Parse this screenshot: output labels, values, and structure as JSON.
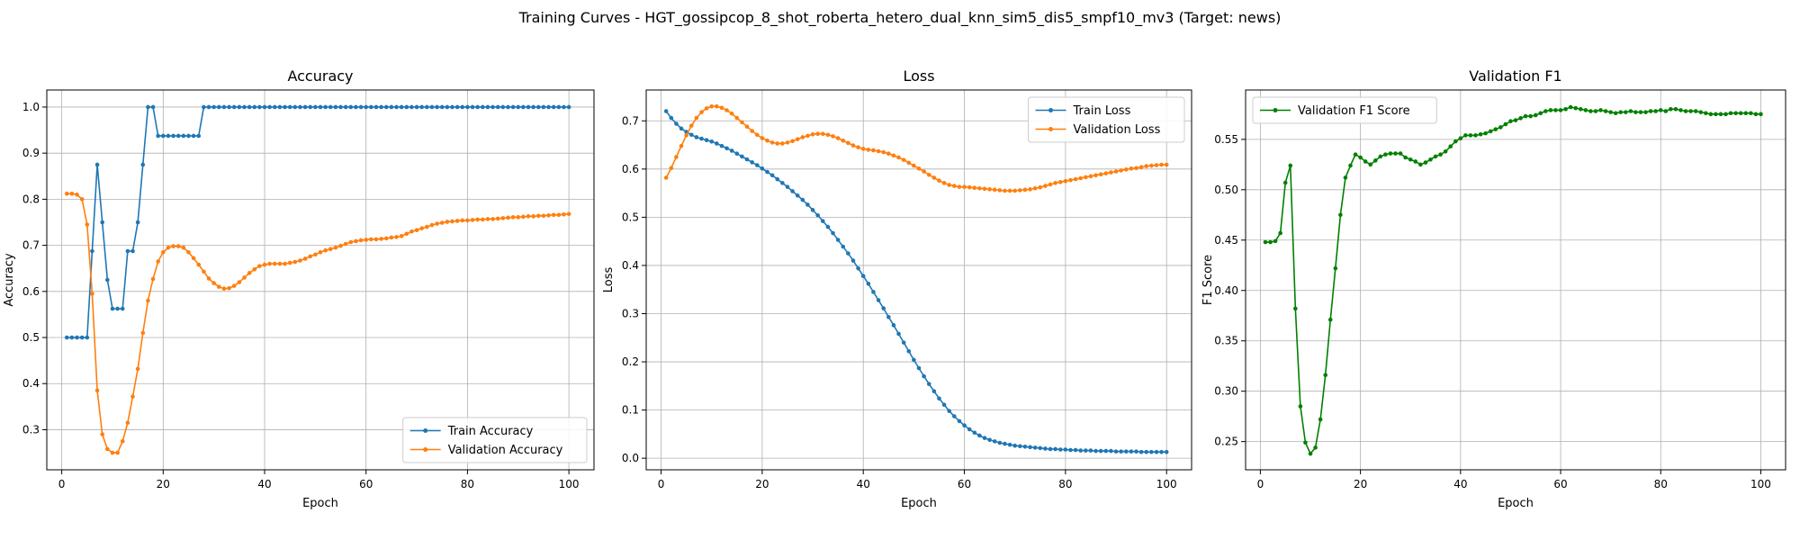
{
  "suptitle": "Training Curves - HGT_gossipcop_8_shot_roberta_hetero_dual_knn_sim5_dis5_smpf10_mv3 (Target: news)",
  "colors": {
    "blue": "#1f77b4",
    "orange": "#ff7f0e",
    "green": "#008000",
    "grid": "#b0b0b0"
  },
  "chart_data": [
    {
      "type": "line",
      "title": "Accuracy",
      "xlabel": "Epoch",
      "ylabel": "Accuracy",
      "xlim": [
        -2.95,
        104.95
      ],
      "ylim": [
        0.213,
        1.037
      ],
      "xticks": [
        0,
        20,
        40,
        60,
        80,
        100
      ],
      "yticks": [
        0.3,
        0.4,
        0.5,
        0.6,
        0.7,
        0.8,
        0.9,
        1.0
      ],
      "ytick_labels": [
        "0.3",
        "0.4",
        "0.5",
        "0.6",
        "0.7",
        "0.8",
        "0.9",
        "1.0"
      ],
      "grid": true,
      "legend_loc": "lower-right",
      "series": [
        {
          "name": "Train Accuracy",
          "color": "#1f77b4",
          "values": [
            0.5,
            0.5,
            0.5,
            0.5,
            0.5,
            0.6875,
            0.875,
            0.75,
            0.625,
            0.5625,
            0.5625,
            0.5625,
            0.6875,
            0.6875,
            0.75,
            0.875,
            1.0,
            1.0,
            0.9375,
            0.9375,
            0.9375,
            0.9375,
            0.9375,
            0.9375,
            0.9375,
            0.9375,
            0.9375,
            1.0,
            1.0,
            1.0,
            1.0,
            1.0,
            1.0,
            1.0,
            1.0,
            1.0,
            1.0,
            1.0,
            1.0,
            1.0,
            1.0,
            1.0,
            1.0,
            1.0,
            1.0,
            1.0,
            1.0,
            1.0,
            1.0,
            1.0,
            1.0,
            1.0,
            1.0,
            1.0,
            1.0,
            1.0,
            1.0,
            1.0,
            1.0,
            1.0,
            1.0,
            1.0,
            1.0,
            1.0,
            1.0,
            1.0,
            1.0,
            1.0,
            1.0,
            1.0,
            1.0,
            1.0,
            1.0,
            1.0,
            1.0,
            1.0,
            1.0,
            1.0,
            1.0,
            1.0,
            1.0,
            1.0,
            1.0,
            1.0,
            1.0,
            1.0,
            1.0,
            1.0,
            1.0,
            1.0,
            1.0,
            1.0,
            1.0,
            1.0,
            1.0,
            1.0,
            1.0,
            1.0,
            1.0,
            1.0
          ]
        },
        {
          "name": "Validation Accuracy",
          "color": "#ff7f0e",
          "values": [
            0.812,
            0.812,
            0.81,
            0.8,
            0.745,
            0.595,
            0.385,
            0.29,
            0.258,
            0.25,
            0.25,
            0.275,
            0.315,
            0.372,
            0.432,
            0.51,
            0.58,
            0.627,
            0.665,
            0.685,
            0.695,
            0.698,
            0.698,
            0.695,
            0.685,
            0.672,
            0.658,
            0.643,
            0.628,
            0.618,
            0.61,
            0.606,
            0.607,
            0.612,
            0.62,
            0.63,
            0.64,
            0.648,
            0.655,
            0.658,
            0.66,
            0.66,
            0.66,
            0.66,
            0.662,
            0.664,
            0.667,
            0.671,
            0.676,
            0.68,
            0.685,
            0.689,
            0.692,
            0.695,
            0.699,
            0.703,
            0.707,
            0.709,
            0.711,
            0.712,
            0.713,
            0.713,
            0.714,
            0.715,
            0.717,
            0.718,
            0.72,
            0.725,
            0.73,
            0.733,
            0.737,
            0.74,
            0.744,
            0.747,
            0.749,
            0.751,
            0.752,
            0.753,
            0.754,
            0.754,
            0.755,
            0.756,
            0.756,
            0.757,
            0.757,
            0.758,
            0.759,
            0.76,
            0.761,
            0.761,
            0.762,
            0.763,
            0.763,
            0.764,
            0.764,
            0.765,
            0.766,
            0.766,
            0.767,
            0.768
          ]
        }
      ]
    },
    {
      "type": "line",
      "title": "Loss",
      "xlabel": "Epoch",
      "ylabel": "Loss",
      "xlim": [
        -2.95,
        104.95
      ],
      "ylim": [
        -0.024,
        0.764
      ],
      "xticks": [
        0,
        20,
        40,
        60,
        80,
        100
      ],
      "yticks": [
        0.0,
        0.1,
        0.2,
        0.3,
        0.4,
        0.5,
        0.6,
        0.7
      ],
      "ytick_labels": [
        "0.0",
        "0.1",
        "0.2",
        "0.3",
        "0.4",
        "0.5",
        "0.6",
        "0.7"
      ],
      "grid": true,
      "legend_loc": "upper-right",
      "series": [
        {
          "name": "Train Loss",
          "color": "#1f77b4",
          "values": [
            0.72,
            0.706,
            0.694,
            0.684,
            0.677,
            0.671,
            0.666,
            0.663,
            0.66,
            0.657,
            0.653,
            0.648,
            0.643,
            0.638,
            0.632,
            0.626,
            0.62,
            0.614,
            0.608,
            0.601,
            0.594,
            0.587,
            0.579,
            0.571,
            0.563,
            0.554,
            0.545,
            0.536,
            0.526,
            0.515,
            0.504,
            0.492,
            0.48,
            0.467,
            0.453,
            0.439,
            0.425,
            0.41,
            0.394,
            0.378,
            0.362,
            0.345,
            0.328,
            0.311,
            0.293,
            0.276,
            0.258,
            0.24,
            0.222,
            0.204,
            0.187,
            0.17,
            0.154,
            0.139,
            0.124,
            0.111,
            0.098,
            0.087,
            0.077,
            0.068,
            0.06,
            0.053,
            0.047,
            0.042,
            0.038,
            0.035,
            0.032,
            0.03,
            0.028,
            0.026,
            0.025,
            0.024,
            0.023,
            0.022,
            0.021,
            0.02,
            0.019,
            0.019,
            0.018,
            0.018,
            0.017,
            0.017,
            0.016,
            0.016,
            0.016,
            0.015,
            0.015,
            0.015,
            0.015,
            0.014,
            0.014,
            0.014,
            0.014,
            0.014,
            0.013,
            0.013,
            0.013,
            0.013,
            0.013,
            0.013
          ]
        },
        {
          "name": "Validation Loss",
          "color": "#ff7f0e",
          "values": [
            0.582,
            0.602,
            0.625,
            0.648,
            0.67,
            0.69,
            0.706,
            0.718,
            0.726,
            0.73,
            0.73,
            0.727,
            0.722,
            0.715,
            0.706,
            0.697,
            0.688,
            0.679,
            0.671,
            0.664,
            0.659,
            0.655,
            0.653,
            0.653,
            0.655,
            0.658,
            0.662,
            0.666,
            0.669,
            0.672,
            0.673,
            0.673,
            0.671,
            0.668,
            0.664,
            0.659,
            0.654,
            0.649,
            0.645,
            0.642,
            0.64,
            0.639,
            0.637,
            0.635,
            0.632,
            0.628,
            0.624,
            0.619,
            0.613,
            0.607,
            0.601,
            0.595,
            0.588,
            0.582,
            0.576,
            0.571,
            0.567,
            0.565,
            0.563,
            0.563,
            0.562,
            0.561,
            0.56,
            0.559,
            0.558,
            0.557,
            0.556,
            0.555,
            0.555,
            0.555,
            0.556,
            0.557,
            0.558,
            0.56,
            0.562,
            0.565,
            0.568,
            0.571,
            0.573,
            0.575,
            0.577,
            0.579,
            0.581,
            0.583,
            0.585,
            0.587,
            0.589,
            0.591,
            0.593,
            0.595,
            0.597,
            0.599,
            0.601,
            0.602,
            0.604,
            0.606,
            0.607,
            0.608,
            0.609,
            0.609
          ]
        }
      ]
    },
    {
      "type": "line",
      "title": "Validation F1",
      "xlabel": "Epoch",
      "ylabel": "F1 Score",
      "xlim": [
        -2.95,
        104.95
      ],
      "ylim": [
        0.222,
        0.599
      ],
      "xticks": [
        0,
        20,
        40,
        60,
        80,
        100
      ],
      "yticks": [
        0.25,
        0.3,
        0.35,
        0.4,
        0.45,
        0.5,
        0.55
      ],
      "ytick_labels": [
        "0.25",
        "0.30",
        "0.35",
        "0.40",
        "0.45",
        "0.50",
        "0.55"
      ],
      "grid": true,
      "legend_loc": "upper-left",
      "series": [
        {
          "name": "Validation F1 Score",
          "color": "#008000",
          "values": [
            0.448,
            0.448,
            0.449,
            0.457,
            0.507,
            0.524,
            0.382,
            0.285,
            0.249,
            0.238,
            0.244,
            0.272,
            0.316,
            0.371,
            0.422,
            0.475,
            0.512,
            0.524,
            0.535,
            0.532,
            0.528,
            0.525,
            0.529,
            0.533,
            0.535,
            0.536,
            0.536,
            0.536,
            0.532,
            0.53,
            0.528,
            0.525,
            0.527,
            0.53,
            0.533,
            0.535,
            0.538,
            0.543,
            0.548,
            0.551,
            0.554,
            0.554,
            0.554,
            0.555,
            0.556,
            0.558,
            0.56,
            0.562,
            0.565,
            0.568,
            0.569,
            0.571,
            0.573,
            0.573,
            0.574,
            0.576,
            0.578,
            0.579,
            0.579,
            0.579,
            0.58,
            0.582,
            0.581,
            0.58,
            0.579,
            0.578,
            0.578,
            0.579,
            0.578,
            0.577,
            0.576,
            0.577,
            0.577,
            0.578,
            0.577,
            0.577,
            0.577,
            0.578,
            0.578,
            0.579,
            0.578,
            0.58,
            0.58,
            0.579,
            0.578,
            0.578,
            0.578,
            0.577,
            0.576,
            0.575,
            0.575,
            0.575,
            0.575,
            0.576,
            0.576,
            0.576,
            0.576,
            0.576,
            0.575,
            0.575
          ]
        }
      ]
    }
  ]
}
